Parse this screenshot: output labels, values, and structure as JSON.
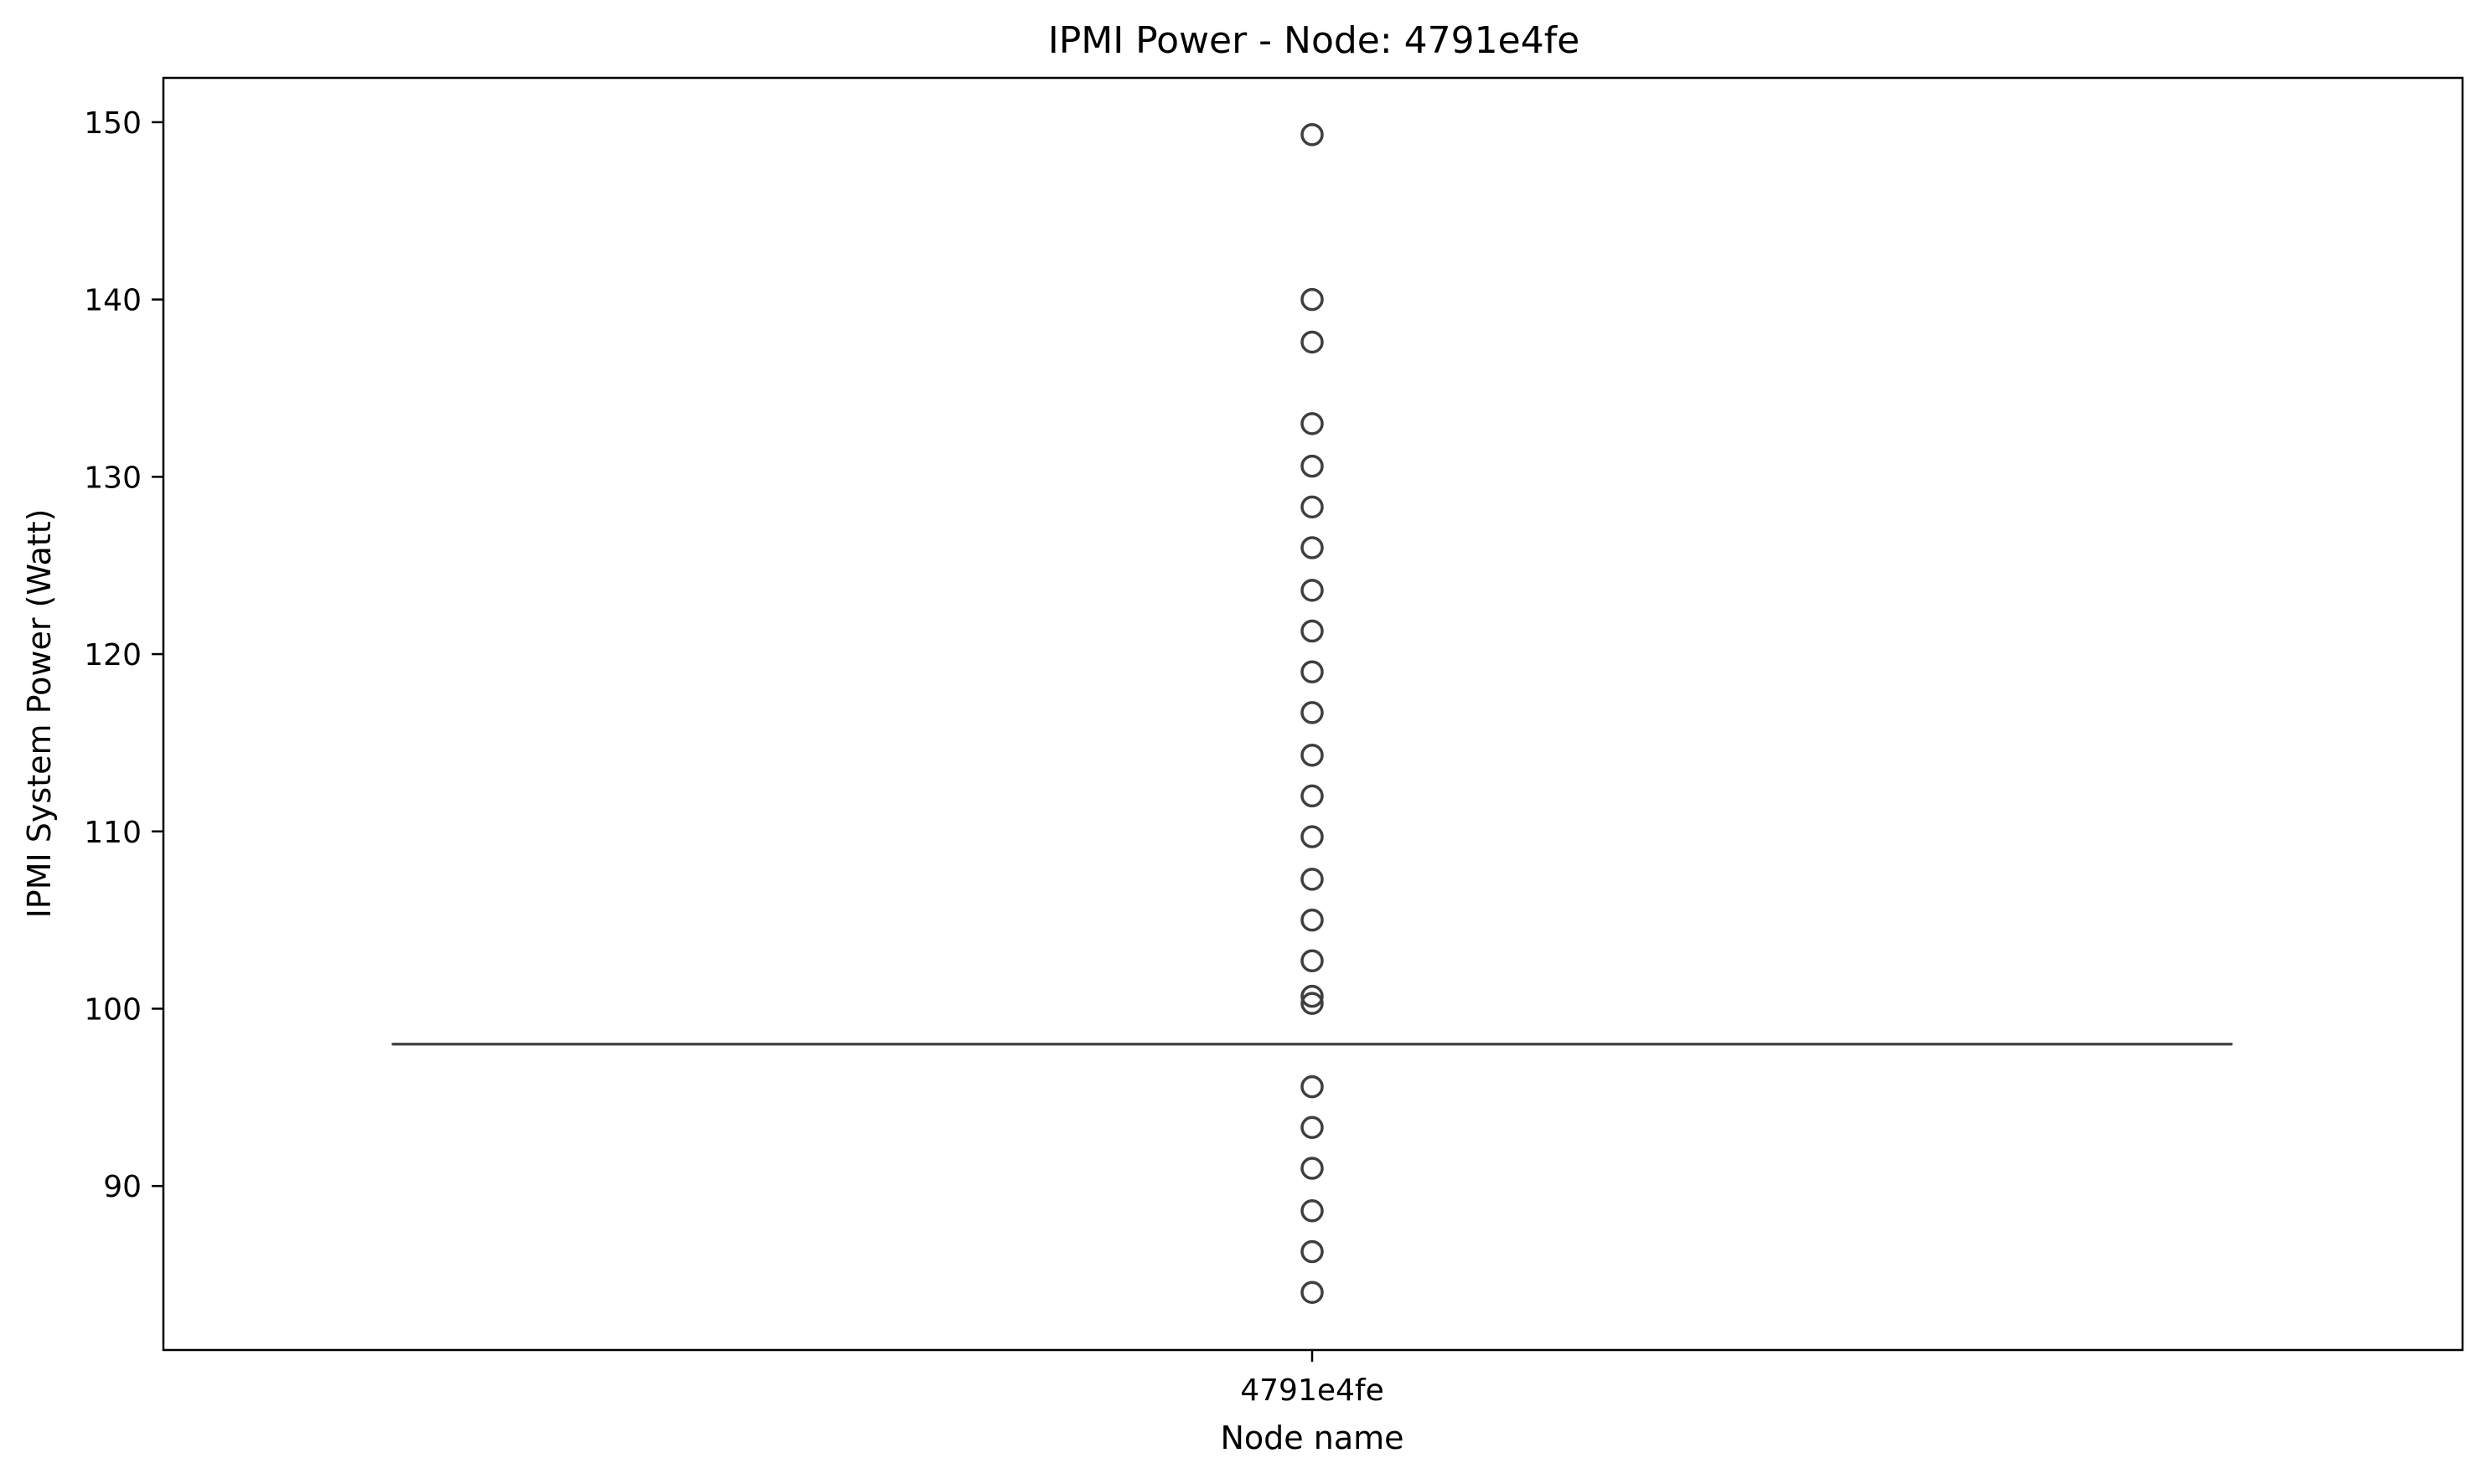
{
  "chart_data": {
    "type": "box",
    "title": "IPMI Power - Node: 4791e4fe",
    "xlabel": "Node name",
    "ylabel": "IPMI System Power (Watt)",
    "categories": [
      "4791e4fe"
    ],
    "ylim": [
      80.75,
      152.5
    ],
    "yticks": [
      90,
      100,
      110,
      120,
      130,
      140,
      150
    ],
    "grid": false,
    "legend": "none",
    "box": {
      "category": "4791e4fe",
      "q1": 98.0,
      "median": 98.0,
      "q3": 98.0,
      "whisker_low": 98.0,
      "whisker_high": 98.0
    },
    "outliers": [
      149.3,
      140.0,
      137.6,
      133.0,
      130.6,
      128.3,
      126.0,
      123.6,
      121.3,
      119.0,
      116.7,
      114.3,
      112.0,
      109.7,
      107.3,
      105.0,
      102.7,
      100.7,
      100.3,
      95.6,
      93.3,
      91.0,
      88.6,
      86.3,
      84.0
    ],
    "colors": {
      "box_line": "#3f3f3f",
      "outlier_edge": "#3f3f3f",
      "axes": "#000000"
    }
  }
}
